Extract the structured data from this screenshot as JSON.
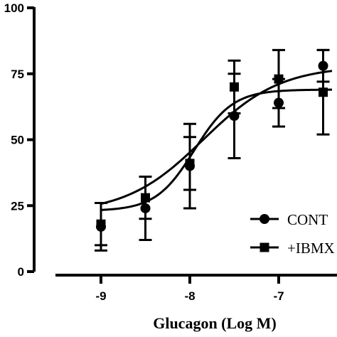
{
  "chart_data": {
    "type": "scatter",
    "title": "",
    "xlabel": "Glucagon (Log M)",
    "ylabel": "",
    "xlim": [
      -9.8,
      -6.4
    ],
    "ylim": [
      0,
      100
    ],
    "x_ticks": [
      -9,
      -8,
      -7
    ],
    "x_tick_labels": [
      "-9",
      "-8",
      "-7"
    ],
    "y_ticks": [
      0,
      25,
      50,
      75,
      100
    ],
    "y_tick_labels": [
      "0",
      "25",
      "50",
      "75",
      "100"
    ],
    "legend_position": "bottom-right",
    "series": [
      {
        "name": "CONT",
        "marker": "circle",
        "points": [
          {
            "x": -9,
            "y": 17,
            "err": 9
          },
          {
            "x": -8.5,
            "y": 24,
            "err": 12
          },
          {
            "x": -8,
            "y": 40,
            "err": 16
          },
          {
            "x": -7.5,
            "y": 59,
            "err": 16
          },
          {
            "x": -7,
            "y": 64,
            "err": 9
          },
          {
            "x": -6.5,
            "y": 78,
            "err": 6
          }
        ],
        "fit": {
          "bottom": 22,
          "top": 78,
          "log_ec50": -7.85,
          "hill": 1.0
        }
      },
      {
        "name": "+IBMX",
        "marker": "square",
        "points": [
          {
            "x": -9,
            "y": 18,
            "err": 8
          },
          {
            "x": -8.5,
            "y": 28,
            "err": 8
          },
          {
            "x": -8,
            "y": 41,
            "err": 10
          },
          {
            "x": -7.5,
            "y": 70,
            "err": 10
          },
          {
            "x": -7,
            "y": 73,
            "err": 11
          },
          {
            "x": -6.5,
            "y": 68,
            "err": 16
          }
        ],
        "fit": {
          "bottom": 23,
          "top": 69,
          "log_ec50": -7.95,
          "hill": 2.0
        }
      }
    ]
  }
}
